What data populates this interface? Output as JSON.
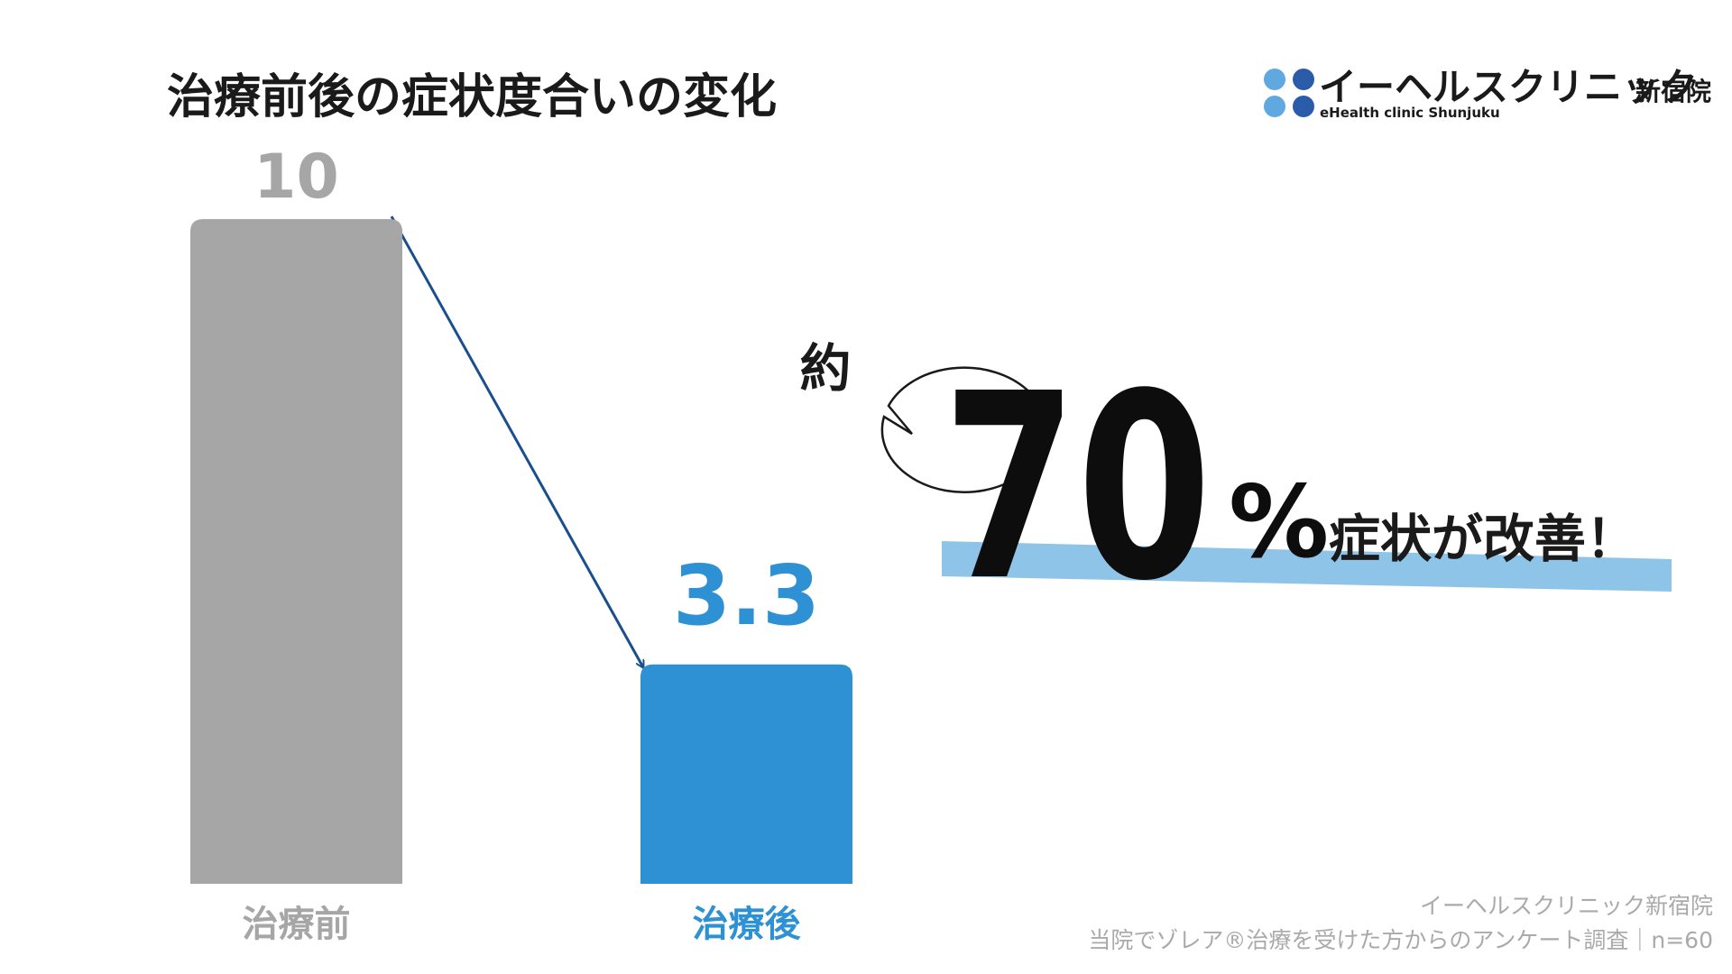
{
  "chart_data": {
    "type": "bar",
    "title": "治療前後の症状度合いの変化",
    "categories": [
      "治療前",
      "治療後"
    ],
    "values": [
      10,
      3.3
    ],
    "colors": [
      "#a6a6a6",
      "#2e91d3"
    ],
    "ylim": [
      0,
      10
    ],
    "annotation": {
      "prefix": "約",
      "value": "70",
      "unit": "%",
      "text": "症状が改善！"
    }
  },
  "logo": {
    "name": "イーヘルスクリニック",
    "branch": "新宿院",
    "subtitle": "eHealth clinic Shunjuku"
  },
  "footer": {
    "clinic": "イーヘルスクリニック新宿院",
    "note": "当院でゾレア®治療を受けた方からのアンケート調査｜n=60"
  }
}
